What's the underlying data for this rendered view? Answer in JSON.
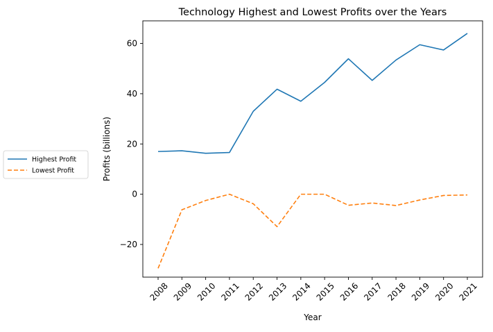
{
  "chart_data": {
    "type": "line",
    "title": "Technology Highest and Lowest Profits over the Years",
    "xlabel": "Year",
    "ylabel": "Profits (billions)",
    "categories": [
      "2008",
      "2009",
      "2010",
      "2011",
      "2012",
      "2013",
      "2014",
      "2015",
      "2016",
      "2017",
      "2018",
      "2019",
      "2020",
      "2021"
    ],
    "yticks": [
      -20,
      0,
      20,
      40,
      60
    ],
    "ylim": [
      -33,
      69
    ],
    "grid": false,
    "legend_position": "left",
    "series": [
      {
        "name": "Highest Profit",
        "color": "#1f77b4",
        "linestyle": "solid",
        "values": [
          17.0,
          17.3,
          16.3,
          16.6,
          33.0,
          41.8,
          37.0,
          44.5,
          53.9,
          45.3,
          53.4,
          59.5,
          57.4,
          64.0
        ]
      },
      {
        "name": "Lowest Profit",
        "color": "#ff7f0e",
        "linestyle": "dashed",
        "values": [
          -29.5,
          -6.2,
          -2.5,
          0.0,
          -3.8,
          -12.9,
          0.0,
          0.0,
          -4.4,
          -3.5,
          -4.5,
          -2.3,
          -0.5,
          -0.3
        ]
      }
    ]
  }
}
